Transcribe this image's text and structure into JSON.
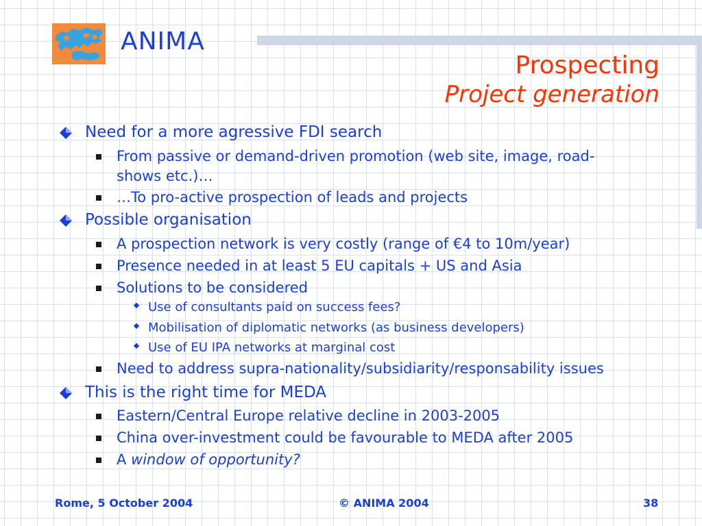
{
  "brand": "ANIMA",
  "title": "Prospecting",
  "subtitle": "Project generation",
  "bullets": {
    "b1": "Need for a more agressive FDI search",
    "b1_1": "From passive or demand-driven promotion (web site, image, road-",
    "b1_1b": "shows etc.)…",
    "b1_2": "…To pro-active prospection of leads and projects",
    "b2": "Possible organisation",
    "b2_1": "A prospection network is very costly (range of €4 to 10m/year)",
    "b2_2": "Presence needed in at least 5 EU capitals + US and Asia",
    "b2_3": "Solutions to be considered",
    "b2_3_1": "Use of consultants paid on success fees?",
    "b2_3_2": "Mobilisation of diplomatic networks (as business developers)",
    "b2_3_3": "Use of EU IPA networks at marginal cost",
    "b2_4": "Need to address supra-nationality/subsidiarity/responsability issues",
    "b3": "This is the right time for MEDA",
    "b3_1": "Eastern/Central Europe relative decline in 2003-2005",
    "b3_2": "China over-investment could be favourable to MEDA after 2005",
    "b3_3_prefix": "A ",
    "b3_3_italic": "window of opportunity?"
  },
  "footer": {
    "left": "Rome, 5 October 2004",
    "center": "©  ANIMA 2004",
    "right": "38"
  }
}
